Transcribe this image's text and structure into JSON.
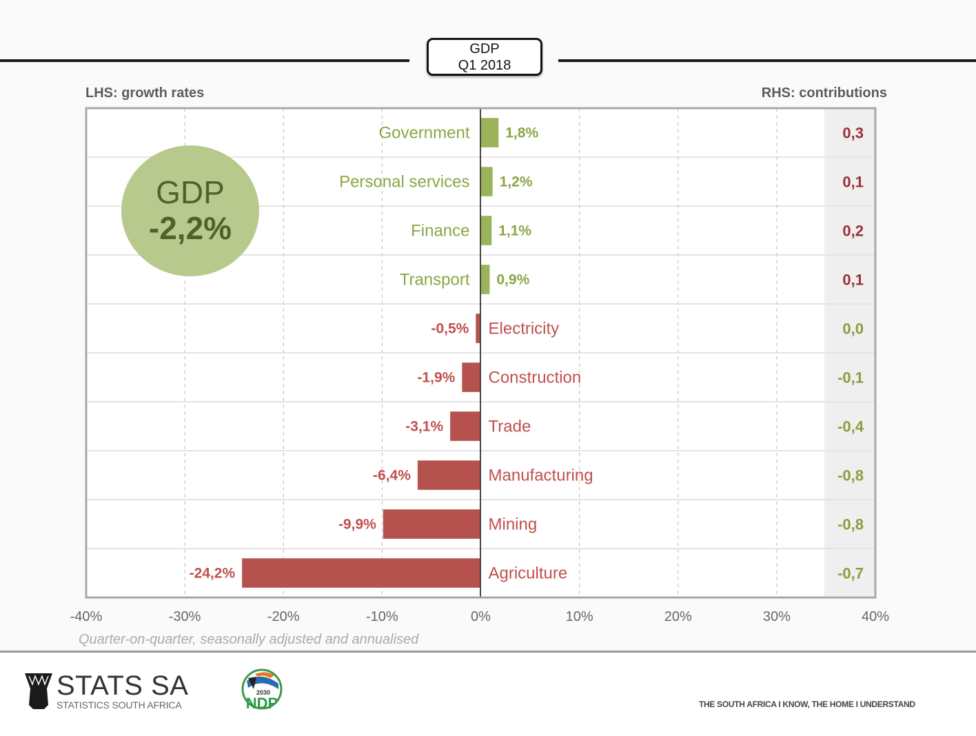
{
  "header": {
    "title_line1": "GDP",
    "title_line2": "Q1 2018",
    "lhs_caption": "LHS: growth rates",
    "rhs_caption": "RHS: contributions"
  },
  "summary": {
    "label": "GDP",
    "value": "-2,2%"
  },
  "footnote": "Quarter-on-quarter, seasonally adjusted and annualised",
  "footer": {
    "logo_main": "STATS SA",
    "logo_sub": "STATISTICS SOUTH AFRICA",
    "ndp_text": "NDP",
    "ndp_year": "2030",
    "slogan": "THE SOUTH AFRICA I KNOW, THE HOME I UNDERSTAND"
  },
  "colors": {
    "positive": "#9bb45a",
    "positive_text": "#8aa645",
    "negative": "#b5524d",
    "negative_text": "#c0504d",
    "contrib_positive_text": "#9b3038",
    "contrib_negative_text": "#8a9e3e",
    "contrib_column_bg": "#efefef",
    "circle": "#b8c98e"
  },
  "chart_data": {
    "type": "bar",
    "orientation": "horizontal",
    "title": "GDP Q1 2018",
    "xlabel": "Quarter-on-quarter, seasonally adjusted and annualised",
    "ylabel": "",
    "xlim": [
      -40,
      40
    ],
    "xticks": [
      -40,
      -30,
      -20,
      -10,
      0,
      10,
      20,
      30,
      40
    ],
    "xtick_labels": [
      "-40%",
      "-30%",
      "-20%",
      "-10%",
      "0%",
      "10%",
      "20%",
      "30%",
      "40%"
    ],
    "grid": "vertical dashed",
    "categories": [
      "Government",
      "Personal services",
      "Finance",
      "Transport",
      "Electricity",
      "Construction",
      "Trade",
      "Manufacturing",
      "Mining",
      "Agriculture"
    ],
    "series": [
      {
        "name": "Growth rate (%)",
        "axis": "LHS",
        "values": [
          1.8,
          1.2,
          1.1,
          0.9,
          -0.5,
          -1.9,
          -3.1,
          -6.4,
          -9.9,
          -24.2
        ],
        "labels": [
          "1,8%",
          "1,2%",
          "1,1%",
          "0,9%",
          "-0,5%",
          "-1,9%",
          "-3,1%",
          "-6,4%",
          "-9,9%",
          "-24,2%"
        ]
      },
      {
        "name": "Contribution (percentage points)",
        "axis": "RHS",
        "values": [
          0.3,
          0.1,
          0.2,
          0.1,
          0.0,
          -0.1,
          -0.4,
          -0.8,
          -0.8,
          -0.7
        ],
        "labels": [
          "0,3",
          "0,1",
          "0,2",
          "0,1",
          "0,0",
          "-0,1",
          "-0,4",
          "-0,8",
          "-0,8",
          "-0,7"
        ]
      }
    ],
    "annotation": "GDP -2,2%"
  }
}
